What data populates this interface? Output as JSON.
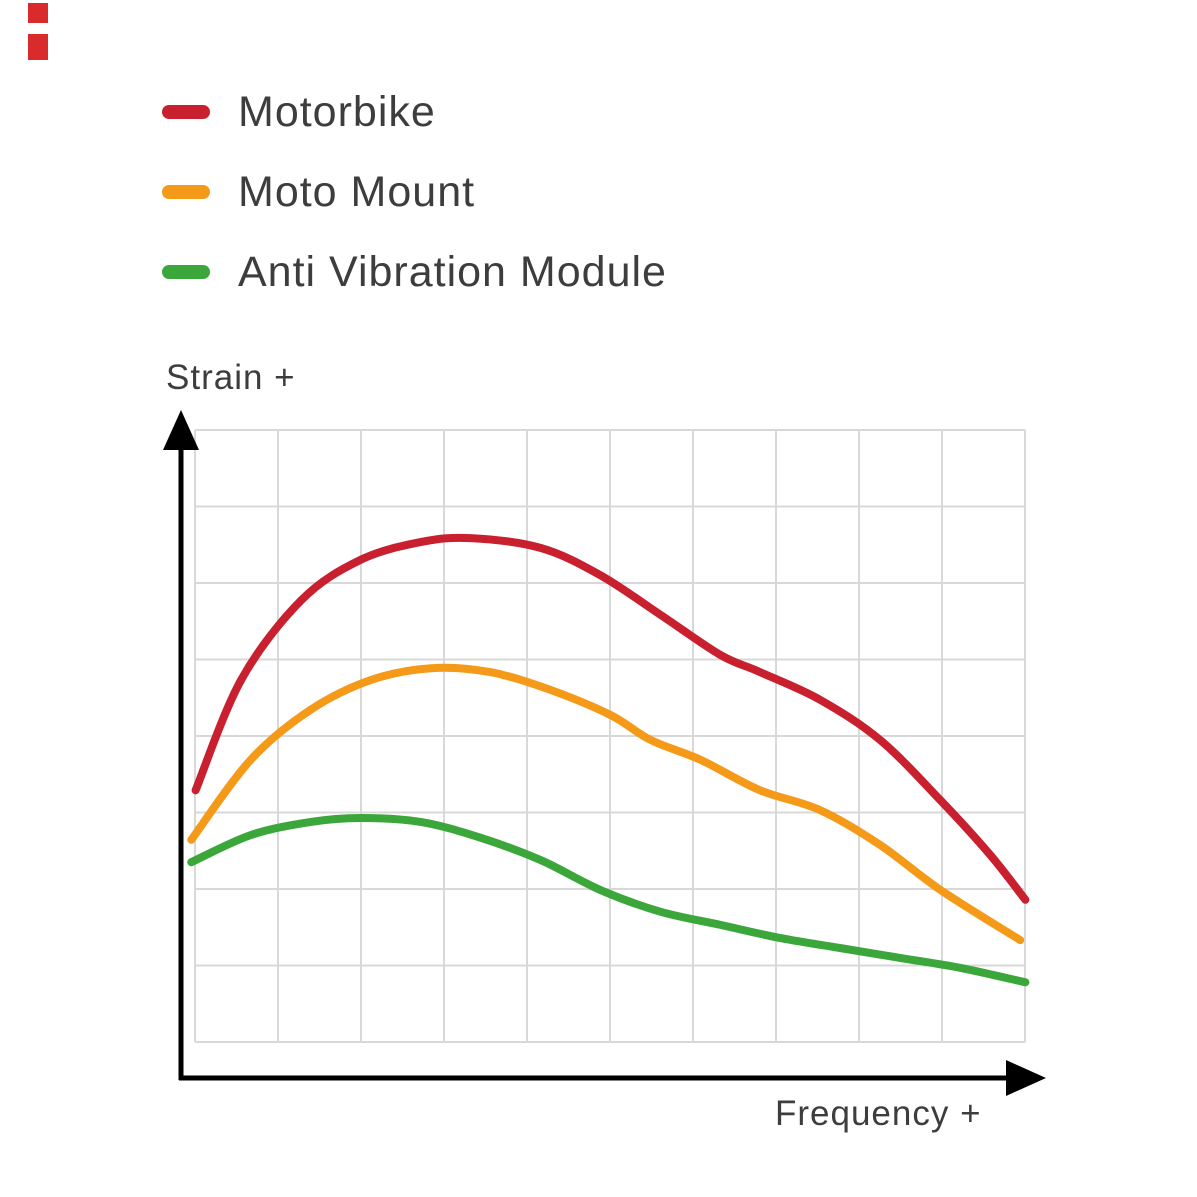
{
  "decor": {
    "watermark_color": "#d92b2b"
  },
  "legend": {
    "items": [
      {
        "label": "Motorbike",
        "color": "#c8202f"
      },
      {
        "label": "Moto Mount",
        "color": "#f49a18"
      },
      {
        "label": "Anti Vibration Module",
        "color": "#3ba639"
      }
    ]
  },
  "chart_data": {
    "type": "line",
    "title": "",
    "xlabel": "Frequency +",
    "ylabel": "Strain +",
    "x_range": [
      0,
      100
    ],
    "y_range": [
      0,
      100
    ],
    "grid": {
      "show": true,
      "cols": 10,
      "rows": 8,
      "color": "#d8d8d8"
    },
    "axis_color": "#000000",
    "legend_position": "top-left",
    "series": [
      {
        "name": "Motorbike",
        "color": "#c8202f",
        "points": [
          [
            1.7,
            43.9
          ],
          [
            7.0,
            60.6
          ],
          [
            14.0,
            72.7
          ],
          [
            20.9,
            78.8
          ],
          [
            27.9,
            81.5
          ],
          [
            33.7,
            82.1
          ],
          [
            41.9,
            80.6
          ],
          [
            48.8,
            76.5
          ],
          [
            55.8,
            70.5
          ],
          [
            62.8,
            64.4
          ],
          [
            67.4,
            61.8
          ],
          [
            74.4,
            57.6
          ],
          [
            81.4,
            51.5
          ],
          [
            88.4,
            42.4
          ],
          [
            94.2,
            34.1
          ],
          [
            98.3,
            27.3
          ]
        ]
      },
      {
        "name": "Moto Mount",
        "color": "#f49a18",
        "points": [
          [
            1.2,
            36.4
          ],
          [
            8.1,
            48.5
          ],
          [
            15.1,
            56.1
          ],
          [
            22.1,
            60.6
          ],
          [
            29.1,
            62.4
          ],
          [
            36.0,
            61.8
          ],
          [
            43.0,
            59.1
          ],
          [
            50.0,
            55.3
          ],
          [
            54.7,
            51.5
          ],
          [
            60.5,
            48.5
          ],
          [
            67.4,
            43.9
          ],
          [
            74.4,
            40.9
          ],
          [
            81.4,
            35.6
          ],
          [
            88.4,
            28.8
          ],
          [
            97.7,
            21.2
          ]
        ]
      },
      {
        "name": "Anti Vibration Module",
        "color": "#3ba639",
        "points": [
          [
            1.2,
            33.0
          ],
          [
            8.1,
            37.1
          ],
          [
            15.1,
            39.1
          ],
          [
            20.9,
            39.7
          ],
          [
            27.9,
            39.1
          ],
          [
            34.9,
            36.7
          ],
          [
            41.9,
            33.3
          ],
          [
            48.8,
            28.8
          ],
          [
            55.8,
            25.5
          ],
          [
            62.8,
            23.5
          ],
          [
            69.8,
            21.5
          ],
          [
            76.7,
            20.0
          ],
          [
            83.7,
            18.5
          ],
          [
            90.7,
            17.0
          ],
          [
            98.3,
            14.8
          ]
        ]
      }
    ]
  }
}
